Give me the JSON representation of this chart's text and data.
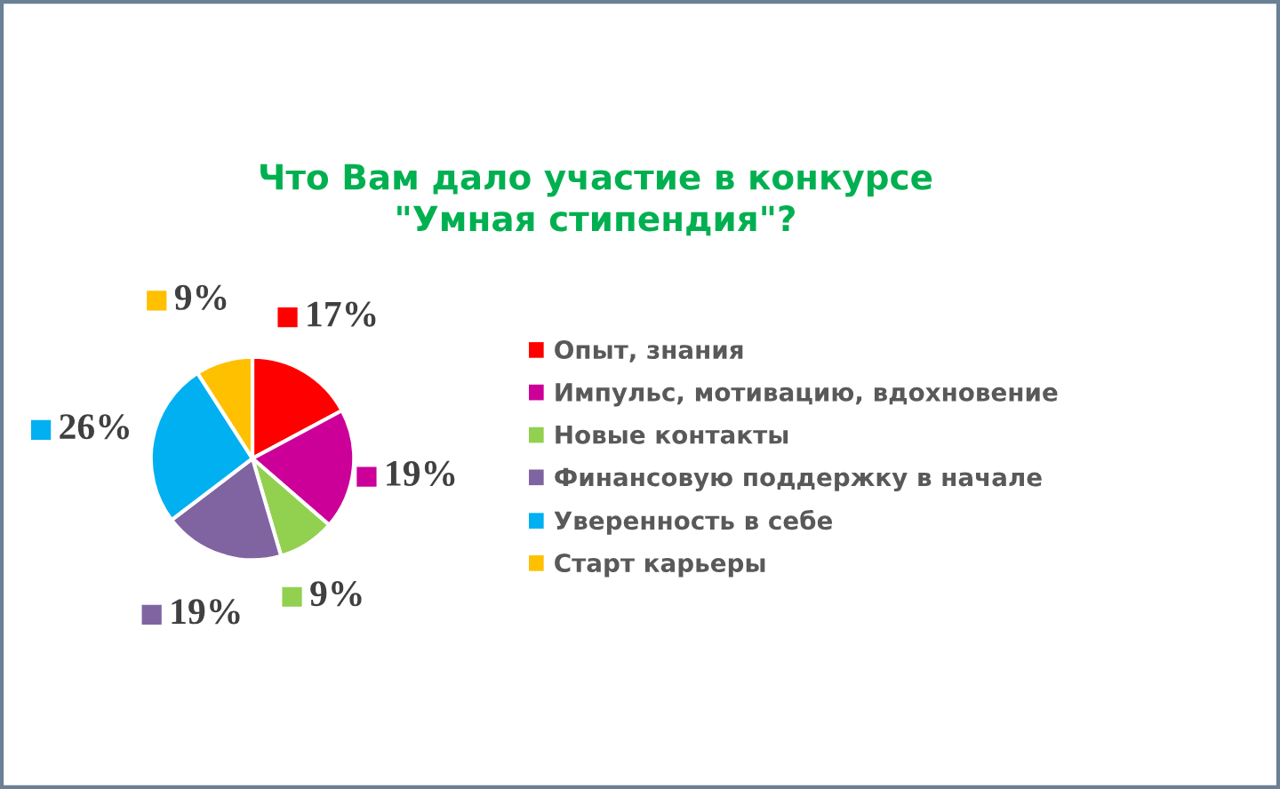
{
  "chart_data": {
    "type": "pie",
    "title": "Что Вам дало участие в конкурсе\n\"Умная стипендия\"?",
    "categories": [
      "Опыт, знания",
      "Импульс, мотивацию, вдохновение",
      "Новые контакты",
      "Финансовую поддержку в начале",
      "Уверенность в себе",
      "Старт карьеры"
    ],
    "values": [
      17,
      19,
      9,
      19,
      26,
      9
    ],
    "colors": [
      "#ff0000",
      "#cc0099",
      "#92d050",
      "#8064a2",
      "#00b0f0",
      "#ffc000"
    ],
    "value_labels": [
      "17%",
      "19%",
      "9%",
      "19%",
      "26%",
      "9%"
    ],
    "legend": "right"
  }
}
